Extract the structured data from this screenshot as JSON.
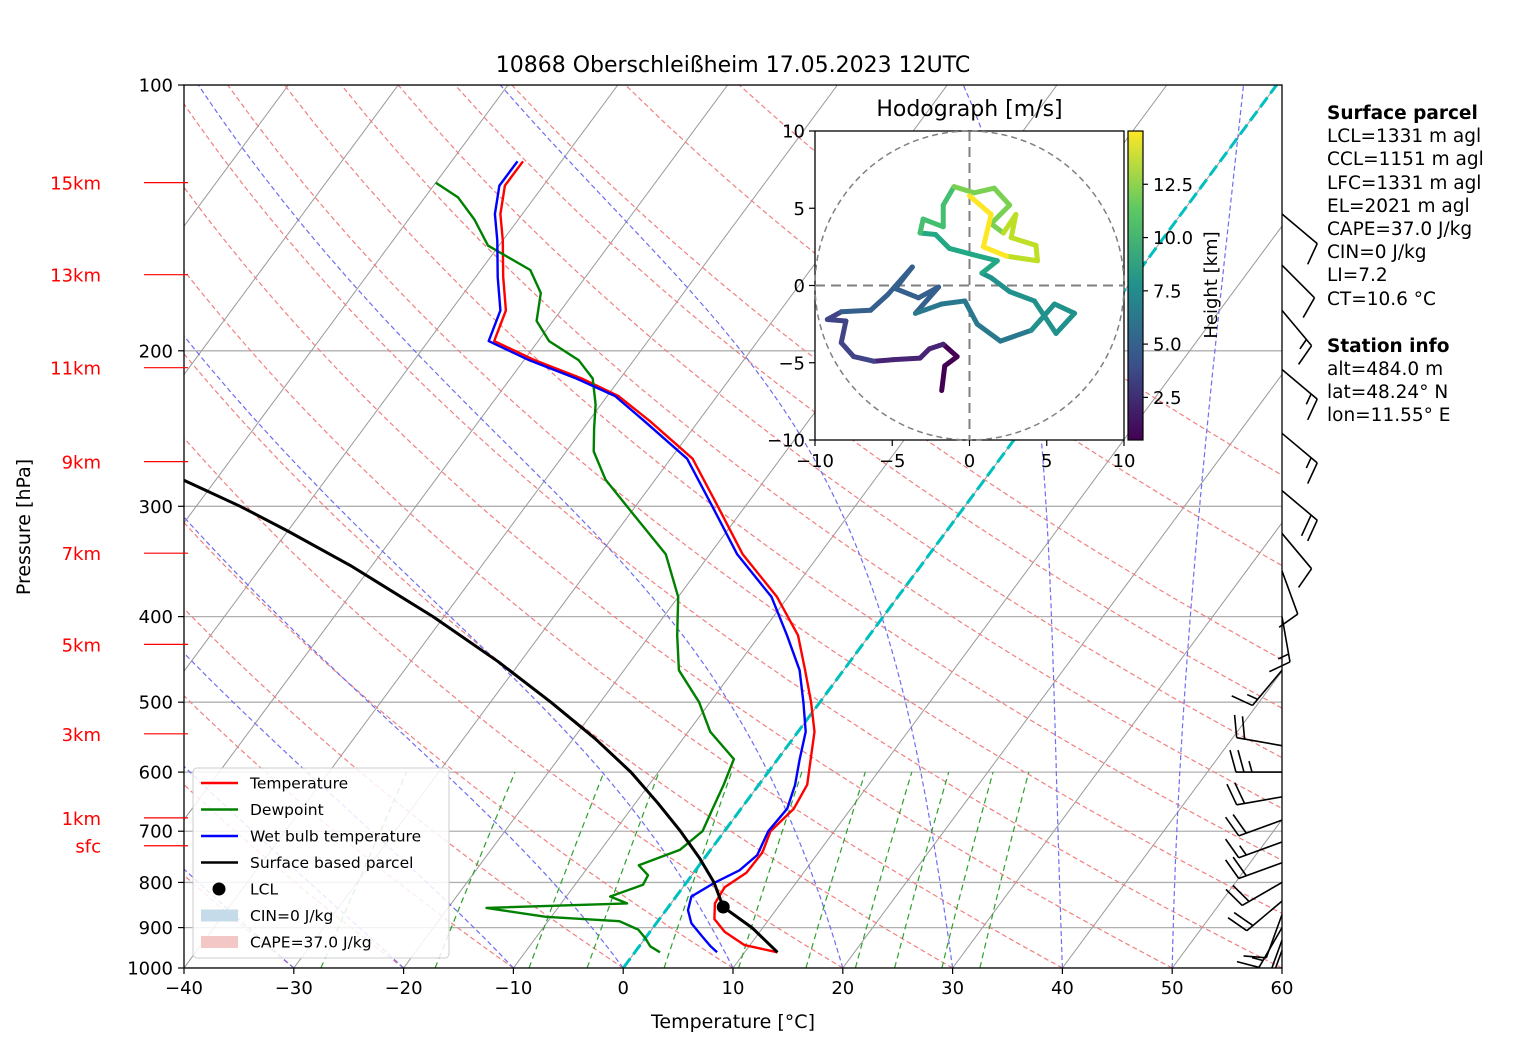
{
  "chart_data": {
    "type": "skew-t",
    "title": "10868 Oberschleißheim 17.05.2023 12UTC",
    "xlabel": "Temperature [°C]",
    "ylabel": "Pressure [hPa]",
    "xlim": [
      -40,
      60
    ],
    "ylim": [
      1000,
      100
    ],
    "x_ticks": [
      "−40",
      "−30",
      "−20",
      "−10",
      "0",
      "10",
      "20",
      "30",
      "40",
      "50",
      "60"
    ],
    "y_ticks": [
      {
        "p": 100,
        "label": "100"
      },
      {
        "p": 200,
        "label": "200"
      },
      {
        "p": 300,
        "label": "300"
      },
      {
        "p": 400,
        "label": "400"
      },
      {
        "p": 500,
        "label": "500"
      },
      {
        "p": 600,
        "label": "600"
      },
      {
        "p": 700,
        "label": "700"
      },
      {
        "p": 800,
        "label": "800"
      },
      {
        "p": 900,
        "label": "900"
      },
      {
        "p": 1000,
        "label": "1000"
      }
    ],
    "height_labels": [
      {
        "label": "15km",
        "p": 129
      },
      {
        "label": "13km",
        "p": 164
      },
      {
        "label": "11km",
        "p": 209
      },
      {
        "label": "9km",
        "p": 267
      },
      {
        "label": "7km",
        "p": 339
      },
      {
        "label": "5km",
        "p": 430
      },
      {
        "label": "3km",
        "p": 543
      },
      {
        "label": "1km",
        "p": 676
      },
      {
        "label": "sfc",
        "p": 727
      }
    ],
    "colors": {
      "temperature": "#ff0000",
      "dewpoint": "#008000",
      "wetbulb": "#0000ff",
      "parcel": "#000000",
      "zero_isotherm": "#00bfbf",
      "cape": "#f4c7c7",
      "cin": "#c6dbea",
      "height_labels": "#ff0000"
    },
    "series": [
      {
        "name": "Temperature",
        "points": [
          [
            13.0,
            960
          ],
          [
            9.5,
            942
          ],
          [
            6.8,
            910
          ],
          [
            5.0,
            880
          ],
          [
            4.0,
            845
          ],
          [
            3.8,
            810
          ],
          [
            4.8,
            780
          ],
          [
            4.9,
            740
          ],
          [
            4.2,
            700
          ],
          [
            4.8,
            660
          ],
          [
            4.4,
            620
          ],
          [
            3.0,
            580
          ],
          [
            1.5,
            540
          ],
          [
            -0.8,
            500
          ],
          [
            -3.5,
            460
          ],
          [
            -6.5,
            420
          ],
          [
            -11.0,
            380
          ],
          [
            -17.0,
            340
          ],
          [
            -22.5,
            300
          ],
          [
            -28.0,
            265
          ],
          [
            -34.5,
            240
          ],
          [
            -39.0,
            225
          ],
          [
            -43.5,
            215
          ],
          [
            -49.0,
            205
          ],
          [
            -54.0,
            195
          ],
          [
            -55.0,
            180
          ],
          [
            -57.5,
            165
          ],
          [
            -60.0,
            150
          ],
          [
            -62.0,
            140
          ],
          [
            -63.5,
            130
          ],
          [
            -63.5,
            122
          ]
        ]
      },
      {
        "name": "Dewpoint",
        "points": [
          [
            2.3,
            960
          ],
          [
            1.0,
            945
          ],
          [
            0.0,
            925
          ],
          [
            -1.2,
            905
          ],
          [
            -3.5,
            885
          ],
          [
            -10.5,
            875
          ],
          [
            -15.0,
            860
          ],
          [
            -16.5,
            855
          ],
          [
            -4.0,
            845
          ],
          [
            -6.0,
            830
          ],
          [
            -3.8,
            805
          ],
          [
            -4.0,
            785
          ],
          [
            -5.5,
            765
          ],
          [
            -2.8,
            735
          ],
          [
            -2.0,
            700
          ],
          [
            -2.6,
            660
          ],
          [
            -3.2,
            620
          ],
          [
            -4.0,
            580
          ],
          [
            -8.0,
            540
          ],
          [
            -11.0,
            500
          ],
          [
            -15.0,
            460
          ],
          [
            -17.5,
            420
          ],
          [
            -20.0,
            380
          ],
          [
            -24.0,
            340
          ],
          [
            -29.0,
            310
          ],
          [
            -34.5,
            280
          ],
          [
            -37.5,
            260
          ],
          [
            -39.0,
            245
          ],
          [
            -40.5,
            230
          ],
          [
            -42.5,
            215
          ],
          [
            -45.0,
            205
          ],
          [
            -49.0,
            195
          ],
          [
            -51.5,
            185
          ],
          [
            -53.0,
            172
          ],
          [
            -55.5,
            162
          ],
          [
            -61.0,
            152
          ],
          [
            -64.0,
            142
          ],
          [
            -67.0,
            134
          ],
          [
            -70.0,
            129
          ]
        ]
      },
      {
        "name": "Wet bulb temperature",
        "points": [
          [
            7.5,
            960
          ],
          [
            6.5,
            945
          ],
          [
            5.0,
            920
          ],
          [
            3.2,
            890
          ],
          [
            2.0,
            860
          ],
          [
            1.4,
            830
          ],
          [
            2.6,
            800
          ],
          [
            4.0,
            775
          ],
          [
            4.6,
            745
          ],
          [
            4.0,
            700
          ],
          [
            4.2,
            660
          ],
          [
            3.3,
            620
          ],
          [
            2.0,
            580
          ],
          [
            0.7,
            540
          ],
          [
            -1.5,
            500
          ],
          [
            -4.0,
            460
          ],
          [
            -7.5,
            420
          ],
          [
            -11.5,
            380
          ],
          [
            -17.5,
            340
          ],
          [
            -23.0,
            300
          ],
          [
            -28.5,
            265
          ],
          [
            -35.0,
            240
          ],
          [
            -39.3,
            225
          ],
          [
            -44.0,
            215
          ],
          [
            -49.5,
            205
          ],
          [
            -54.5,
            195
          ],
          [
            -55.5,
            180
          ],
          [
            -58.0,
            165
          ],
          [
            -60.5,
            150
          ],
          [
            -62.5,
            140
          ],
          [
            -64.0,
            130
          ],
          [
            -64.0,
            122
          ]
        ]
      },
      {
        "name": "Surface based parcel",
        "points": [
          [
            13.0,
            960
          ],
          [
            9.0,
            900
          ],
          [
            5.0,
            853
          ],
          [
            2.5,
            800
          ],
          [
            -0.5,
            750
          ],
          [
            -4.0,
            700
          ],
          [
            -8.0,
            650
          ],
          [
            -12.5,
            600
          ],
          [
            -18.0,
            550
          ],
          [
            -24.5,
            500
          ],
          [
            -32.0,
            450
          ],
          [
            -41.0,
            400
          ],
          [
            -52.0,
            350
          ],
          [
            -60.0,
            320
          ],
          [
            -66.0,
            300
          ],
          [
            -73.0,
            280
          ],
          [
            -81.0,
            260
          ],
          [
            -90.0,
            240
          ],
          [
            -100.0,
            220
          ],
          [
            -107.0,
            208
          ],
          [
            -114.0,
            196
          ],
          [
            -122.0,
            184
          ],
          [
            -130.0,
            172
          ],
          [
            -137.0,
            163
          ]
        ]
      }
    ],
    "lcl": {
      "t": 5.0,
      "p": 853
    },
    "cape_area": [
      [
        3.3,
        800
      ],
      [
        3.8,
        810
      ],
      [
        4.2,
        830
      ],
      [
        5.0,
        853
      ],
      [
        4.0,
        820
      ],
      [
        3.2,
        800
      ]
    ],
    "zero_isotherm": [
      [
        0,
        1000
      ],
      [
        0,
        100
      ]
    ],
    "legend": {
      "placement": "lower-left",
      "items": [
        {
          "label": "Temperature",
          "kind": "line",
          "color": "#ff0000"
        },
        {
          "label": "Dewpoint",
          "kind": "line",
          "color": "#008000"
        },
        {
          "label": "Wet bulb temperature",
          "kind": "line",
          "color": "#0000ff"
        },
        {
          "label": "Surface based parcel",
          "kind": "line",
          "color": "#000000"
        },
        {
          "label": "LCL",
          "kind": "dot",
          "color": "#000000"
        },
        {
          "label": "CIN=0 J/kg",
          "kind": "patch",
          "color": "#c6dbea"
        },
        {
          "label": "CAPE=37.0 J/kg",
          "kind": "patch",
          "color": "#f4c7c7"
        }
      ]
    },
    "wind_barbs": [
      {
        "p": 955,
        "speed_kt": 15,
        "dir": 200
      },
      {
        "p": 930,
        "speed_kt": 15,
        "dir": 200
      },
      {
        "p": 900,
        "speed_kt": 15,
        "dir": 210
      },
      {
        "p": 870,
        "speed_kt": 10,
        "dir": 200
      },
      {
        "p": 840,
        "speed_kt": 20,
        "dir": 230
      },
      {
        "p": 800,
        "speed_kt": 20,
        "dir": 240
      },
      {
        "p": 760,
        "speed_kt": 20,
        "dir": 250
      },
      {
        "p": 720,
        "speed_kt": 15,
        "dir": 250
      },
      {
        "p": 680,
        "speed_kt": 20,
        "dir": 250
      },
      {
        "p": 640,
        "speed_kt": 20,
        "dir": 260
      },
      {
        "p": 600,
        "speed_kt": 25,
        "dir": 270
      },
      {
        "p": 560,
        "speed_kt": 20,
        "dir": 280
      },
      {
        "p": 460,
        "speed_kt": 15,
        "dir": 220
      },
      {
        "p": 400,
        "speed_kt": 15,
        "dir": 170
      },
      {
        "p": 355,
        "speed_kt": 10,
        "dir": 160
      },
      {
        "p": 322,
        "speed_kt": 10,
        "dir": 140
      },
      {
        "p": 288,
        "speed_kt": 20,
        "dir": 130
      },
      {
        "p": 248,
        "speed_kt": 15,
        "dir": 130
      },
      {
        "p": 210,
        "speed_kt": 15,
        "dir": 130
      },
      {
        "p": 180,
        "speed_kt": 15,
        "dir": 140
      },
      {
        "p": 160,
        "speed_kt": 10,
        "dir": 135
      },
      {
        "p": 140,
        "speed_kt": 10,
        "dir": 130
      }
    ]
  },
  "hodograph": {
    "title": "Hodograph [m/s]",
    "xlim": [
      -10,
      10
    ],
    "ylim": [
      -10,
      10
    ],
    "x_ticks": [
      "−10",
      "−5",
      "0",
      "5",
      "10"
    ],
    "y_ticks": [
      "10",
      "5",
      "0",
      "−5",
      "−10"
    ],
    "ring_radius": 10,
    "colorbar": {
      "label": "Height [km]",
      "range": [
        0.5,
        15
      ],
      "ticks": [
        "2.5",
        "5.0",
        "7.5",
        "10.0",
        "12.5"
      ],
      "colormap": "viridis"
    },
    "segments": [
      {
        "h": 0.5,
        "u": -1.8,
        "v": -6.8
      },
      {
        "h": 0.7,
        "u": -1.6,
        "v": -5.2
      },
      {
        "h": 1.0,
        "u": -0.8,
        "v": -4.6
      },
      {
        "h": 1.2,
        "u": -1.7,
        "v": -3.8
      },
      {
        "h": 1.5,
        "u": -2.6,
        "v": -4.1
      },
      {
        "h": 1.8,
        "u": -3.2,
        "v": -4.7
      },
      {
        "h": 2.1,
        "u": -4.9,
        "v": -4.8
      },
      {
        "h": 2.4,
        "u": -6.2,
        "v": -4.9
      },
      {
        "h": 2.7,
        "u": -7.5,
        "v": -4.6
      },
      {
        "h": 3.0,
        "u": -8.3,
        "v": -3.7
      },
      {
        "h": 3.3,
        "u": -8.0,
        "v": -2.3
      },
      {
        "h": 3.6,
        "u": -9.2,
        "v": -2.2
      },
      {
        "h": 3.9,
        "u": -8.3,
        "v": -1.7
      },
      {
        "h": 4.2,
        "u": -6.4,
        "v": -1.6
      },
      {
        "h": 4.5,
        "u": -5.3,
        "v": -0.6
      },
      {
        "h": 4.7,
        "u": -3.7,
        "v": 1.2
      },
      {
        "h": 4.9,
        "u": -4.8,
        "v": -0.2
      },
      {
        "h": 5.1,
        "u": -3.3,
        "v": -0.8
      },
      {
        "h": 5.3,
        "u": -2.0,
        "v": -0.1
      },
      {
        "h": 5.5,
        "u": -3.5,
        "v": -1.8
      },
      {
        "h": 5.8,
        "u": -1.8,
        "v": -1.2
      },
      {
        "h": 6.1,
        "u": -0.3,
        "v": -1.0
      },
      {
        "h": 6.4,
        "u": 0.5,
        "v": -2.5
      },
      {
        "h": 6.7,
        "u": 2.0,
        "v": -3.6
      },
      {
        "h": 7.0,
        "u": 4.0,
        "v": -2.9
      },
      {
        "h": 7.2,
        "u": 5.5,
        "v": -1.2
      },
      {
        "h": 7.4,
        "u": 6.8,
        "v": -1.8
      },
      {
        "h": 7.6,
        "u": 5.6,
        "v": -3.1
      },
      {
        "h": 7.8,
        "u": 4.2,
        "v": -1.0
      },
      {
        "h": 8.0,
        "u": 2.6,
        "v": -0.4
      },
      {
        "h": 8.2,
        "u": 1.4,
        "v": 0.5
      },
      {
        "h": 8.4,
        "u": 0.8,
        "v": 0.8
      },
      {
        "h": 8.7,
        "u": 1.8,
        "v": 1.6
      },
      {
        "h": 9.0,
        "u": 0.2,
        "v": 2.0
      },
      {
        "h": 9.3,
        "u": -1.3,
        "v": 2.4
      },
      {
        "h": 9.6,
        "u": -2.2,
        "v": 3.3
      },
      {
        "h": 9.9,
        "u": -3.2,
        "v": 3.4
      },
      {
        "h": 10.2,
        "u": -3.0,
        "v": 4.3
      },
      {
        "h": 10.5,
        "u": -1.7,
        "v": 3.8
      },
      {
        "h": 10.8,
        "u": -1.7,
        "v": 5.2
      },
      {
        "h": 11.1,
        "u": -1.0,
        "v": 6.4
      },
      {
        "h": 11.4,
        "u": 0.3,
        "v": 6.0
      },
      {
        "h": 11.7,
        "u": 1.6,
        "v": 6.3
      },
      {
        "h": 12.0,
        "u": 2.6,
        "v": 5.2
      },
      {
        "h": 12.3,
        "u": 1.4,
        "v": 4.0
      },
      {
        "h": 12.6,
        "u": 2.2,
        "v": 3.4
      },
      {
        "h": 12.9,
        "u": 3.0,
        "v": 4.6
      },
      {
        "h": 13.2,
        "u": 2.7,
        "v": 3.1
      },
      {
        "h": 13.5,
        "u": 4.3,
        "v": 2.6
      },
      {
        "h": 13.8,
        "u": 4.4,
        "v": 1.6
      },
      {
        "h": 14.1,
        "u": 2.4,
        "v": 1.9
      },
      {
        "h": 14.4,
        "u": 0.9,
        "v": 2.5
      },
      {
        "h": 14.7,
        "u": 1.4,
        "v": 4.6
      },
      {
        "h": 15.0,
        "u": 0.0,
        "v": 5.8
      }
    ]
  },
  "info_panel": {
    "surface_header": "Surface parcel",
    "surface_lines": [
      "LCL=1331 m agl",
      "CCL=1151 m agl",
      "LFC=1331 m agl",
      "EL=2021 m agl",
      "CAPE=37.0 J/kg",
      "CIN=0 J/kg",
      "LI=7.2",
      "CT=10.6 °C"
    ],
    "station_header": "Station info",
    "station_lines": [
      "alt=484.0 m",
      "lat=48.24° N",
      "lon=11.55° E"
    ]
  }
}
